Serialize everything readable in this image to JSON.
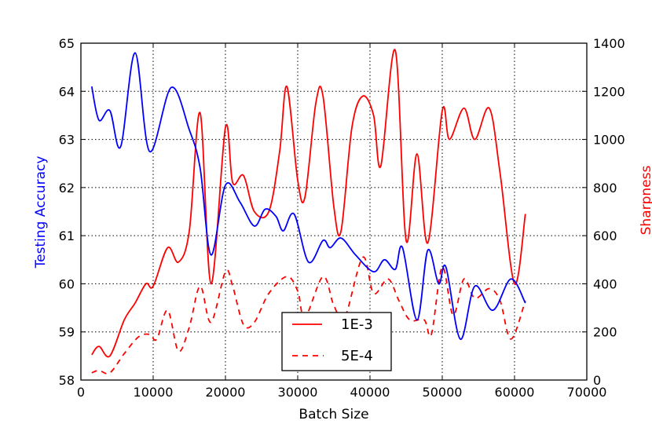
{
  "chart_data": {
    "type": "line",
    "xlabel": "Batch Size",
    "ylabel_left": "Testing Accuracy",
    "ylabel_right": "Sharpness",
    "xlim": [
      0,
      70000
    ],
    "ylim_left": [
      58,
      65
    ],
    "ylim_right": [
      0,
      1400
    ],
    "x_ticks": [
      "0",
      "10000",
      "20000",
      "30000",
      "40000",
      "50000",
      "60000",
      "70000"
    ],
    "y_ticks_left": [
      "58",
      "59",
      "60",
      "61",
      "62",
      "63",
      "64",
      "65"
    ],
    "y_ticks_right": [
      "0",
      "200",
      "400",
      "600",
      "800",
      "1000",
      "1200",
      "1400"
    ],
    "grid": true,
    "legend_position": "lower center",
    "colors": {
      "accuracy": "#0000ff",
      "sharpness": "#ff0000"
    },
    "series": [
      {
        "axis": "left",
        "style": "solid",
        "color": "#0000ff",
        "points": [
          [
            1500,
            64.1
          ],
          [
            2500,
            63.4
          ],
          [
            4000,
            63.6
          ],
          [
            5500,
            62.85
          ],
          [
            7500,
            64.8
          ],
          [
            9500,
            62.75
          ],
          [
            12500,
            64.08
          ],
          [
            15000,
            63.2
          ],
          [
            16500,
            62.4
          ],
          [
            18000,
            60.6
          ],
          [
            20000,
            62.05
          ],
          [
            22000,
            61.7
          ],
          [
            24000,
            61.2
          ],
          [
            25500,
            61.55
          ],
          [
            27000,
            61.4
          ],
          [
            28000,
            61.1
          ],
          [
            29500,
            61.45
          ],
          [
            31500,
            60.45
          ],
          [
            33500,
            60.9
          ],
          [
            34500,
            60.75
          ],
          [
            36000,
            60.95
          ],
          [
            38000,
            60.6
          ],
          [
            40500,
            60.25
          ],
          [
            42000,
            60.5
          ],
          [
            43500,
            60.3
          ],
          [
            44500,
            60.75
          ],
          [
            46500,
            59.25
          ],
          [
            48000,
            60.7
          ],
          [
            49500,
            60.0
          ],
          [
            50500,
            60.35
          ],
          [
            52500,
            58.85
          ],
          [
            54500,
            59.95
          ],
          [
            57000,
            59.45
          ],
          [
            59500,
            60.1
          ],
          [
            61500,
            59.6
          ]
        ]
      },
      {
        "name": "1E-3",
        "axis": "right",
        "style": "solid",
        "color": "#ff0000",
        "points": [
          [
            1500,
            105
          ],
          [
            2500,
            140
          ],
          [
            4000,
            100
          ],
          [
            6000,
            250
          ],
          [
            7500,
            320
          ],
          [
            9000,
            400
          ],
          [
            10000,
            390
          ],
          [
            12000,
            550
          ],
          [
            13500,
            490
          ],
          [
            15000,
            620
          ],
          [
            16500,
            1110
          ],
          [
            18000,
            400
          ],
          [
            20000,
            1050
          ],
          [
            21000,
            820
          ],
          [
            22500,
            850
          ],
          [
            24000,
            700
          ],
          [
            26000,
            700
          ],
          [
            27500,
            950
          ],
          [
            28500,
            1220
          ],
          [
            30000,
            830
          ],
          [
            31000,
            760
          ],
          [
            32500,
            1150
          ],
          [
            33500,
            1180
          ],
          [
            35000,
            720
          ],
          [
            36000,
            620
          ],
          [
            37500,
            1050
          ],
          [
            39000,
            1180
          ],
          [
            40500,
            1100
          ],
          [
            41500,
            890
          ],
          [
            43500,
            1370
          ],
          [
            45000,
            580
          ],
          [
            46500,
            940
          ],
          [
            48000,
            570
          ],
          [
            50000,
            1120
          ],
          [
            51000,
            1000
          ],
          [
            53000,
            1130
          ],
          [
            54500,
            1000
          ],
          [
            56500,
            1130
          ],
          [
            58000,
            860
          ],
          [
            60000,
            400
          ],
          [
            61500,
            690
          ]
        ]
      },
      {
        "name": "5E-4",
        "axis": "right",
        "style": "dashed",
        "color": "#ff0000",
        "points": [
          [
            1500,
            30
          ],
          [
            2500,
            40
          ],
          [
            4000,
            30
          ],
          [
            6000,
            110
          ],
          [
            8000,
            180
          ],
          [
            9500,
            190
          ],
          [
            10500,
            170
          ],
          [
            12000,
            290
          ],
          [
            13500,
            120
          ],
          [
            15000,
            220
          ],
          [
            16500,
            390
          ],
          [
            18000,
            240
          ],
          [
            20000,
            450
          ],
          [
            21000,
            390
          ],
          [
            22500,
            230
          ],
          [
            24000,
            240
          ],
          [
            26000,
            360
          ],
          [
            28500,
            430
          ],
          [
            30000,
            370
          ],
          [
            31000,
            260
          ],
          [
            33500,
            430
          ],
          [
            35000,
            310
          ],
          [
            36500,
            260
          ],
          [
            39000,
            510
          ],
          [
            40500,
            360
          ],
          [
            42500,
            420
          ],
          [
            44000,
            330
          ],
          [
            45500,
            250
          ],
          [
            47500,
            250
          ],
          [
            48500,
            190
          ],
          [
            50000,
            470
          ],
          [
            51500,
            270
          ],
          [
            53000,
            420
          ],
          [
            54500,
            340
          ],
          [
            56500,
            380
          ],
          [
            58000,
            330
          ],
          [
            59500,
            170
          ],
          [
            61500,
            330
          ]
        ]
      }
    ]
  },
  "legend": [
    {
      "label": "1E-3",
      "style": "solid"
    },
    {
      "label": "5E-4",
      "style": "dashed"
    }
  ]
}
